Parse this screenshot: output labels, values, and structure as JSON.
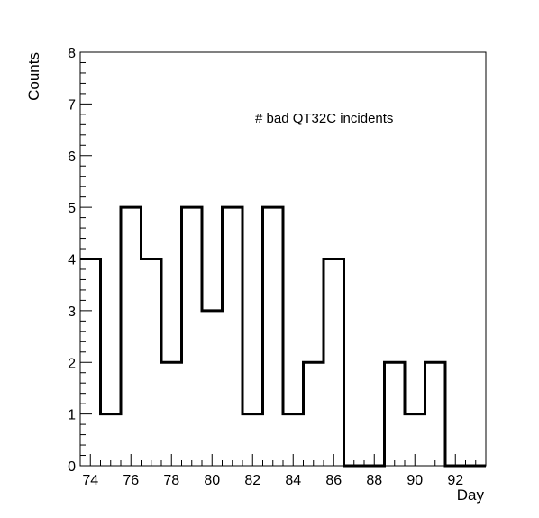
{
  "chart_data": {
    "type": "bar",
    "style": "histogram-step",
    "title": "",
    "annotation": "# bad QT32C incidents",
    "xlabel": "Day",
    "ylabel": "Counts",
    "xlim": [
      73.5,
      93.5
    ],
    "ylim": [
      0,
      8
    ],
    "bin_width": 1,
    "bin_edges": [
      73.5,
      74.5,
      75.5,
      76.5,
      77.5,
      78.5,
      79.5,
      80.5,
      81.5,
      82.5,
      83.5,
      84.5,
      85.5,
      86.5,
      87.5,
      88.5,
      89.5,
      90.5,
      91.5,
      92.5,
      93.5
    ],
    "values": [
      4,
      1,
      5,
      4,
      2,
      5,
      3,
      5,
      1,
      5,
      1,
      2,
      4,
      0,
      0,
      2,
      1,
      2,
      0,
      0
    ],
    "x_ticks": [
      74,
      76,
      78,
      80,
      82,
      84,
      86,
      88,
      90,
      92
    ],
    "y_ticks": [
      0,
      1,
      2,
      3,
      4,
      5,
      6,
      7,
      8
    ],
    "grid": false,
    "legend": "none",
    "line_color": "#000000"
  }
}
